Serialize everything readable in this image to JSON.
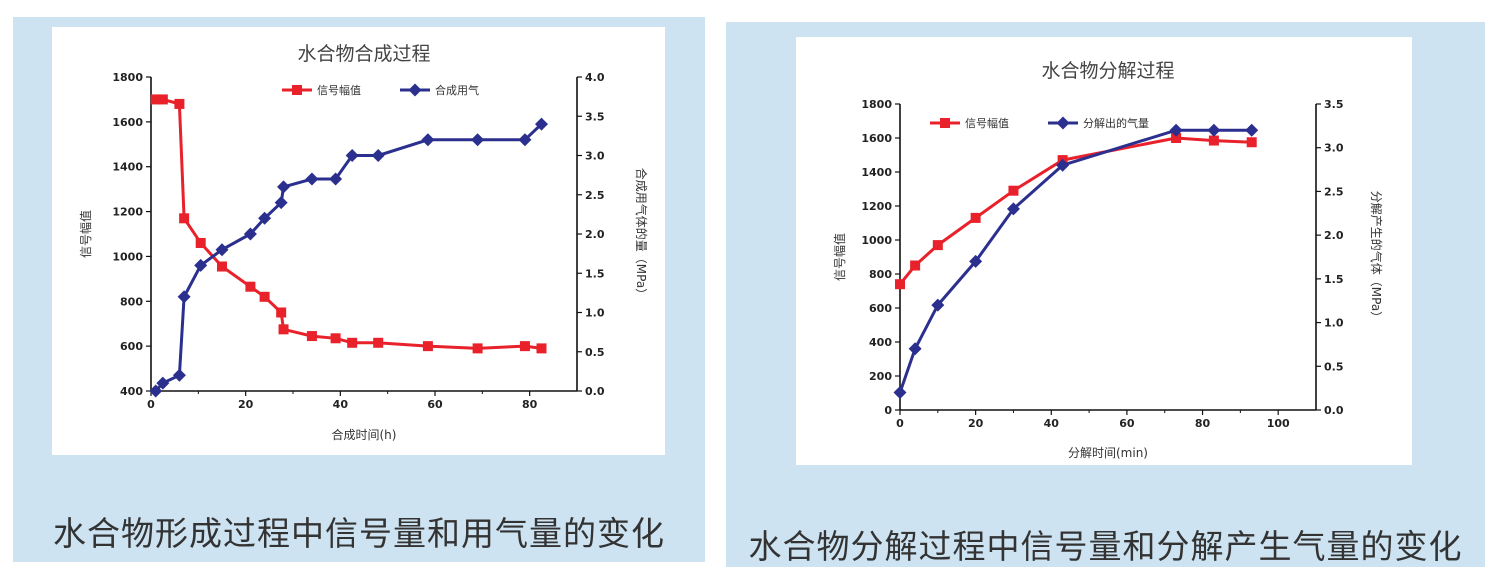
{
  "captions": {
    "left": "水合物形成过程中信号量和用气量的变化",
    "right": "水合物分解过程中信号量和分解产生气量的变化"
  },
  "colors": {
    "signal": "#e8212b",
    "gas": "#2b2f8e",
    "panel": "#cde3f2"
  },
  "chart_data": [
    {
      "type": "line",
      "title": "水合物合成过程",
      "xlabel": "合成时间(h)",
      "ylabel": "信号幅值",
      "y2label": "合成用气体的量（MPa）",
      "xlim": [
        0,
        90
      ],
      "ylim": [
        400,
        1800
      ],
      "y2lim": [
        0,
        4
      ],
      "xticks": [
        0,
        20,
        40,
        60,
        80
      ],
      "yticks": [
        400,
        600,
        800,
        1000,
        1200,
        1400,
        1600,
        1800
      ],
      "y2ticks": [
        0.0,
        0.5,
        1.0,
        1.5,
        2.0,
        2.5,
        3.0,
        3.5,
        4.0
      ],
      "grid": false,
      "legend": "top-center",
      "series": [
        {
          "name": "信号幅值",
          "axis": "left",
          "marker": "square",
          "color": "#e8212b",
          "x": [
            1,
            2.5,
            6,
            7,
            10.5,
            15,
            21,
            24,
            27.5,
            28,
            34,
            39,
            42.5,
            48,
            58.5,
            69,
            79,
            82.5
          ],
          "y": [
            1700,
            1700,
            1680,
            1170,
            1060,
            955,
            865,
            820,
            750,
            675,
            645,
            635,
            615,
            615,
            600,
            590,
            600,
            590
          ]
        },
        {
          "name": "合成用气",
          "axis": "right",
          "marker": "diamond",
          "color": "#2b2f8e",
          "x": [
            1,
            2.5,
            6,
            7,
            10.5,
            15,
            21,
            24,
            27.5,
            28,
            34,
            39,
            42.5,
            48,
            58.5,
            69,
            79,
            82.5
          ],
          "y": [
            0.0,
            0.1,
            0.2,
            1.2,
            1.6,
            1.8,
            2.0,
            2.2,
            2.4,
            2.6,
            2.7,
            2.7,
            3.0,
            3.0,
            3.2,
            3.2,
            3.2,
            3.4
          ]
        }
      ]
    },
    {
      "type": "line",
      "title": "水合物分解过程",
      "xlabel": "分解时间(min)",
      "ylabel": "信号幅值",
      "y2label": "分解产生的气体（MPa）",
      "xlim": [
        0,
        110
      ],
      "ylim": [
        0,
        1800
      ],
      "y2lim": [
        0,
        3.5
      ],
      "xticks": [
        0,
        20,
        40,
        60,
        80,
        100
      ],
      "yticks": [
        0,
        200,
        400,
        600,
        800,
        1000,
        1200,
        1400,
        1600,
        1800
      ],
      "y2ticks": [
        0.0,
        0.5,
        1.0,
        1.5,
        2.0,
        2.5,
        3.0,
        3.5
      ],
      "grid": false,
      "legend": "top-left",
      "series": [
        {
          "name": "信号幅值",
          "axis": "left",
          "marker": "square",
          "color": "#e8212b",
          "x": [
            0,
            4,
            10,
            20,
            30,
            43,
            73,
            83,
            93
          ],
          "y": [
            740,
            850,
            970,
            1130,
            1290,
            1470,
            1600,
            1585,
            1575
          ]
        },
        {
          "name": "分解出的气量",
          "axis": "right",
          "marker": "diamond",
          "color": "#2b2f8e",
          "x": [
            0,
            4,
            10,
            20,
            30,
            43,
            73,
            83,
            93
          ],
          "y": [
            0.2,
            0.7,
            1.2,
            1.7,
            2.3,
            2.8,
            3.2,
            3.2,
            3.2
          ]
        }
      ]
    }
  ]
}
